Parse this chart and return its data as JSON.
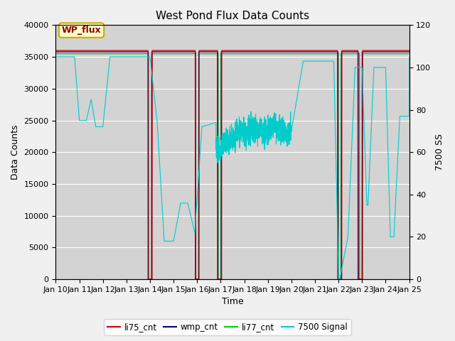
{
  "title": "West Pond Flux Data Counts",
  "xlabel": "Time",
  "ylabel_left": "Data Counts",
  "ylabel_right": "7500 SS",
  "xlim": [
    0,
    15
  ],
  "ylim_left": [
    0,
    40000
  ],
  "ylim_right": [
    0,
    120
  ],
  "xtick_labels": [
    "Jan 10",
    "Jan 11",
    "Jan 12",
    "Jan 13",
    "Jan 14",
    "Jan 15",
    "Jan 16",
    "Jan 17",
    "Jan 18",
    "Jan 19",
    "Jan 20",
    "Jan 21",
    "Jan 22",
    "Jan 23",
    "Jan 24",
    "Jan 25"
  ],
  "yticks_left": [
    0,
    5000,
    10000,
    15000,
    20000,
    25000,
    30000,
    35000,
    40000
  ],
  "yticks_right": [
    0,
    20,
    40,
    60,
    80,
    100,
    120
  ],
  "fig_bg_color": "#f0f0f0",
  "plot_bg_color": "#d3d3d3",
  "grid_color": "#ffffff",
  "legend_label_box": "WP_flux",
  "legend_box_facecolor": "#ffffcc",
  "legend_box_edgecolor": "#ccaa00",
  "li75_color": "#cc0000",
  "wmp_color": "#000080",
  "li77_color": "#00cc00",
  "sig_color": "#00cccc",
  "title_fontsize": 11,
  "axis_fontsize": 9,
  "tick_fontsize": 8
}
